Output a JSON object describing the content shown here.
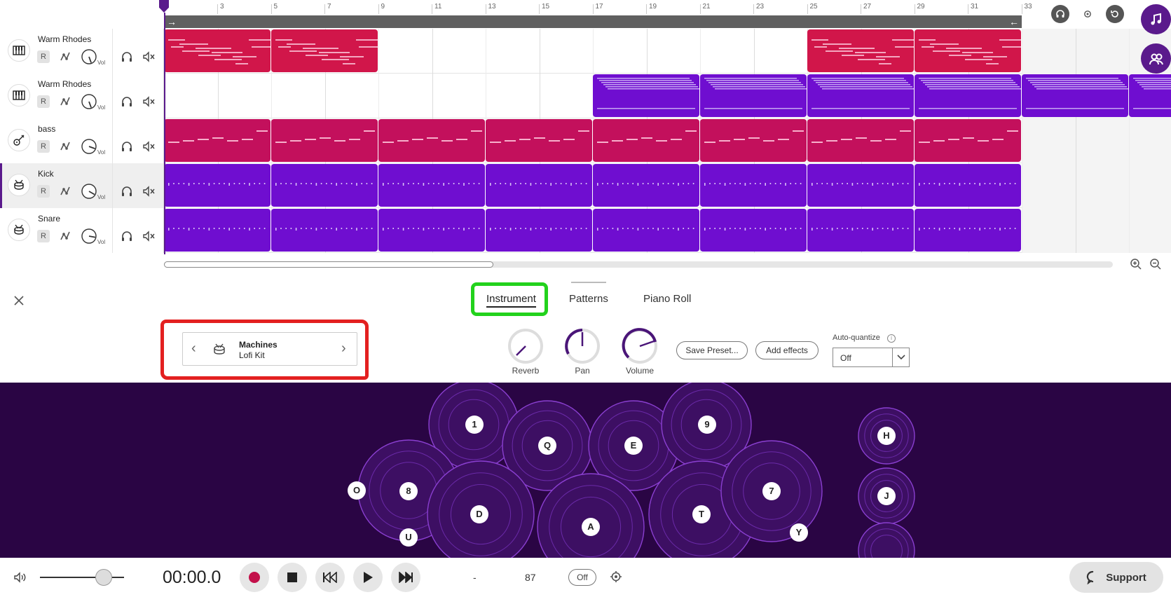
{
  "ruler": {
    "labels": [
      "3",
      "5",
      "7",
      "9",
      "11",
      "13",
      "15",
      "17",
      "19",
      "21",
      "23",
      "25",
      "27",
      "29",
      "31",
      "33"
    ]
  },
  "tracks": [
    {
      "name": "Warm Rhodes",
      "instrument": "piano-icon",
      "r_label": "R",
      "vol_label": "Vol",
      "color": "#d1164a",
      "selected": false
    },
    {
      "name": "Warm Rhodes",
      "instrument": "piano-icon",
      "r_label": "R",
      "vol_label": "Vol",
      "color": "#6f0ed0",
      "selected": false
    },
    {
      "name": "bass",
      "instrument": "guitar-icon",
      "r_label": "R",
      "vol_label": "Vol",
      "color": "#c3105c",
      "selected": false
    },
    {
      "name": "Kick",
      "instrument": "drum-icon",
      "r_label": "R",
      "vol_label": "Vol",
      "color": "#6f0ed0",
      "selected": true
    },
    {
      "name": "Snare",
      "instrument": "drum-icon",
      "r_label": "R",
      "vol_label": "Vol",
      "color": "#6f0ed0",
      "selected": false
    }
  ],
  "tabs": [
    {
      "label": "Instrument",
      "active": true
    },
    {
      "label": "Patterns",
      "active": false
    },
    {
      "label": "Piano Roll",
      "active": false
    }
  ],
  "preset": {
    "name": "Machines",
    "sub": "Lofi Kit"
  },
  "knobs": [
    {
      "label": "Reverb"
    },
    {
      "label": "Pan"
    },
    {
      "label": "Volume"
    }
  ],
  "buttons": {
    "save_preset": "Save Preset...",
    "add_effects": "Add effects"
  },
  "auto_quantize": {
    "label": "Auto-quantize",
    "value": "Off"
  },
  "pads": {
    "keys": [
      "1",
      "Q",
      "E",
      "9",
      "O",
      "8",
      "D",
      "A",
      "T",
      "7",
      "Y",
      "U",
      "H",
      "J"
    ]
  },
  "transport": {
    "time": "00:00.0",
    "dash": "-",
    "bpm": "87",
    "metronome": "Off",
    "support_label": "Support"
  },
  "colors": {
    "accent": "#5a1a8c",
    "pad_bg": "#2a0544",
    "highlight_green": "#22d21c",
    "highlight_red": "#e32020"
  }
}
